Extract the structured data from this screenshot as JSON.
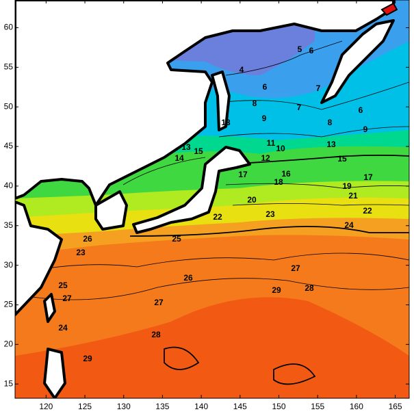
{
  "map": {
    "xlim": [
      116,
      166.8
    ],
    "ylim": [
      13.2,
      63.5
    ],
    "xticks": [
      120,
      125,
      130,
      135,
      140,
      145,
      150,
      155,
      160,
      165
    ],
    "yticks": [
      15,
      20,
      25,
      30,
      35,
      40,
      45,
      50,
      55,
      60
    ],
    "contour_labels": [
      5,
      6,
      4,
      6,
      7,
      8,
      7,
      6,
      9,
      8,
      9,
      13,
      11,
      10,
      13,
      12,
      15,
      13,
      14,
      15,
      17,
      16,
      18,
      17,
      19,
      21,
      20,
      22,
      23,
      24,
      22,
      25,
      26,
      23,
      26,
      27,
      28,
      29,
      27,
      25,
      27,
      28,
      24,
      29
    ]
  }
}
